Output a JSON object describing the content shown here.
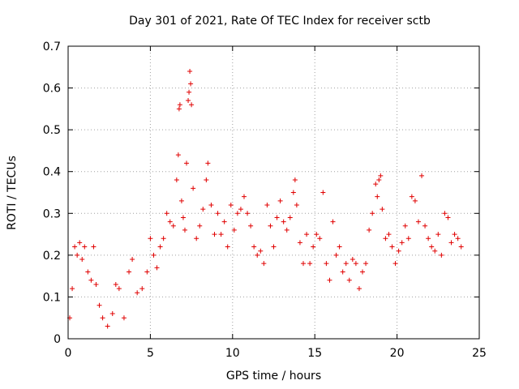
{
  "chart_data": {
    "type": "scatter",
    "title": "Day 301 of 2021, Rate Of TEC Index for receiver sctb",
    "xlabel": "GPS time / hours",
    "ylabel": "ROTI / TECUs",
    "xlim": [
      0,
      25
    ],
    "ylim": [
      0,
      0.7
    ],
    "xticks": [
      0,
      5,
      10,
      15,
      20,
      25
    ],
    "yticks": [
      0,
      0.1,
      0.2,
      0.3,
      0.4,
      0.5,
      0.6,
      0.7
    ],
    "xtick_labels": [
      "0",
      "5",
      "10",
      "15",
      "20",
      "25"
    ],
    "ytick_labels": [
      "0",
      "0.1",
      "0.2",
      "0.3",
      "0.4",
      "0.5",
      "0.6",
      "0.7"
    ],
    "grid": true,
    "marker": "plus",
    "color": "#e00000",
    "series": [
      {
        "values": [
          [
            0.1,
            0.05
          ],
          [
            0.25,
            0.12
          ],
          [
            0.4,
            0.22
          ],
          [
            0.55,
            0.2
          ],
          [
            0.7,
            0.23
          ],
          [
            0.85,
            0.19
          ],
          [
            1.0,
            0.22
          ],
          [
            1.2,
            0.16
          ],
          [
            1.4,
            0.14
          ],
          [
            1.55,
            0.22
          ],
          [
            1.7,
            0.13
          ],
          [
            1.9,
            0.08
          ],
          [
            2.1,
            0.05
          ],
          [
            2.4,
            0.03
          ],
          [
            2.7,
            0.06
          ],
          [
            2.9,
            0.13
          ],
          [
            3.1,
            0.12
          ],
          [
            3.4,
            0.05
          ],
          [
            3.7,
            0.16
          ],
          [
            3.9,
            0.19
          ],
          [
            4.2,
            0.11
          ],
          [
            4.5,
            0.12
          ],
          [
            4.8,
            0.16
          ],
          [
            5.0,
            0.24
          ],
          [
            5.2,
            0.2
          ],
          [
            5.4,
            0.17
          ],
          [
            5.6,
            0.22
          ],
          [
            5.8,
            0.24
          ],
          [
            6.0,
            0.3
          ],
          [
            6.2,
            0.28
          ],
          [
            6.4,
            0.27
          ],
          [
            6.6,
            0.38
          ],
          [
            6.7,
            0.44
          ],
          [
            6.75,
            0.55
          ],
          [
            6.8,
            0.56
          ],
          [
            6.9,
            0.33
          ],
          [
            7.0,
            0.29
          ],
          [
            7.1,
            0.26
          ],
          [
            7.2,
            0.42
          ],
          [
            7.3,
            0.57
          ],
          [
            7.35,
            0.59
          ],
          [
            7.4,
            0.64
          ],
          [
            7.45,
            0.61
          ],
          [
            7.5,
            0.56
          ],
          [
            7.6,
            0.36
          ],
          [
            7.8,
            0.24
          ],
          [
            8.0,
            0.27
          ],
          [
            8.2,
            0.31
          ],
          [
            8.4,
            0.38
          ],
          [
            8.5,
            0.42
          ],
          [
            8.7,
            0.32
          ],
          [
            8.9,
            0.25
          ],
          [
            9.1,
            0.3
          ],
          [
            9.3,
            0.25
          ],
          [
            9.5,
            0.28
          ],
          [
            9.7,
            0.22
          ],
          [
            9.9,
            0.32
          ],
          [
            10.1,
            0.26
          ],
          [
            10.3,
            0.3
          ],
          [
            10.5,
            0.31
          ],
          [
            10.7,
            0.34
          ],
          [
            10.9,
            0.3
          ],
          [
            11.1,
            0.27
          ],
          [
            11.3,
            0.22
          ],
          [
            11.5,
            0.2
          ],
          [
            11.7,
            0.21
          ],
          [
            11.9,
            0.18
          ],
          [
            12.1,
            0.32
          ],
          [
            12.3,
            0.27
          ],
          [
            12.5,
            0.22
          ],
          [
            12.7,
            0.29
          ],
          [
            12.9,
            0.33
          ],
          [
            13.1,
            0.28
          ],
          [
            13.3,
            0.26
          ],
          [
            13.5,
            0.29
          ],
          [
            13.7,
            0.35
          ],
          [
            13.8,
            0.38
          ],
          [
            13.9,
            0.32
          ],
          [
            14.1,
            0.23
          ],
          [
            14.3,
            0.18
          ],
          [
            14.5,
            0.25
          ],
          [
            14.7,
            0.18
          ],
          [
            14.9,
            0.22
          ],
          [
            15.1,
            0.25
          ],
          [
            15.3,
            0.24
          ],
          [
            15.5,
            0.35
          ],
          [
            15.7,
            0.18
          ],
          [
            15.9,
            0.14
          ],
          [
            16.1,
            0.28
          ],
          [
            16.3,
            0.2
          ],
          [
            16.5,
            0.22
          ],
          [
            16.7,
            0.16
          ],
          [
            16.9,
            0.18
          ],
          [
            17.1,
            0.14
          ],
          [
            17.3,
            0.19
          ],
          [
            17.5,
            0.18
          ],
          [
            17.7,
            0.12
          ],
          [
            17.9,
            0.16
          ],
          [
            18.1,
            0.18
          ],
          [
            18.3,
            0.26
          ],
          [
            18.5,
            0.3
          ],
          [
            18.7,
            0.37
          ],
          [
            18.8,
            0.34
          ],
          [
            18.9,
            0.38
          ],
          [
            19.0,
            0.39
          ],
          [
            19.1,
            0.31
          ],
          [
            19.3,
            0.24
          ],
          [
            19.5,
            0.25
          ],
          [
            19.7,
            0.22
          ],
          [
            19.9,
            0.18
          ],
          [
            20.1,
            0.21
          ],
          [
            20.3,
            0.23
          ],
          [
            20.5,
            0.27
          ],
          [
            20.7,
            0.24
          ],
          [
            20.9,
            0.34
          ],
          [
            21.1,
            0.33
          ],
          [
            21.3,
            0.28
          ],
          [
            21.5,
            0.39
          ],
          [
            21.7,
            0.27
          ],
          [
            21.9,
            0.24
          ],
          [
            22.1,
            0.22
          ],
          [
            22.3,
            0.21
          ],
          [
            22.5,
            0.25
          ],
          [
            22.7,
            0.2
          ],
          [
            22.9,
            0.3
          ],
          [
            23.1,
            0.29
          ],
          [
            23.3,
            0.23
          ],
          [
            23.5,
            0.25
          ],
          [
            23.7,
            0.24
          ],
          [
            23.9,
            0.22
          ]
        ]
      }
    ]
  }
}
